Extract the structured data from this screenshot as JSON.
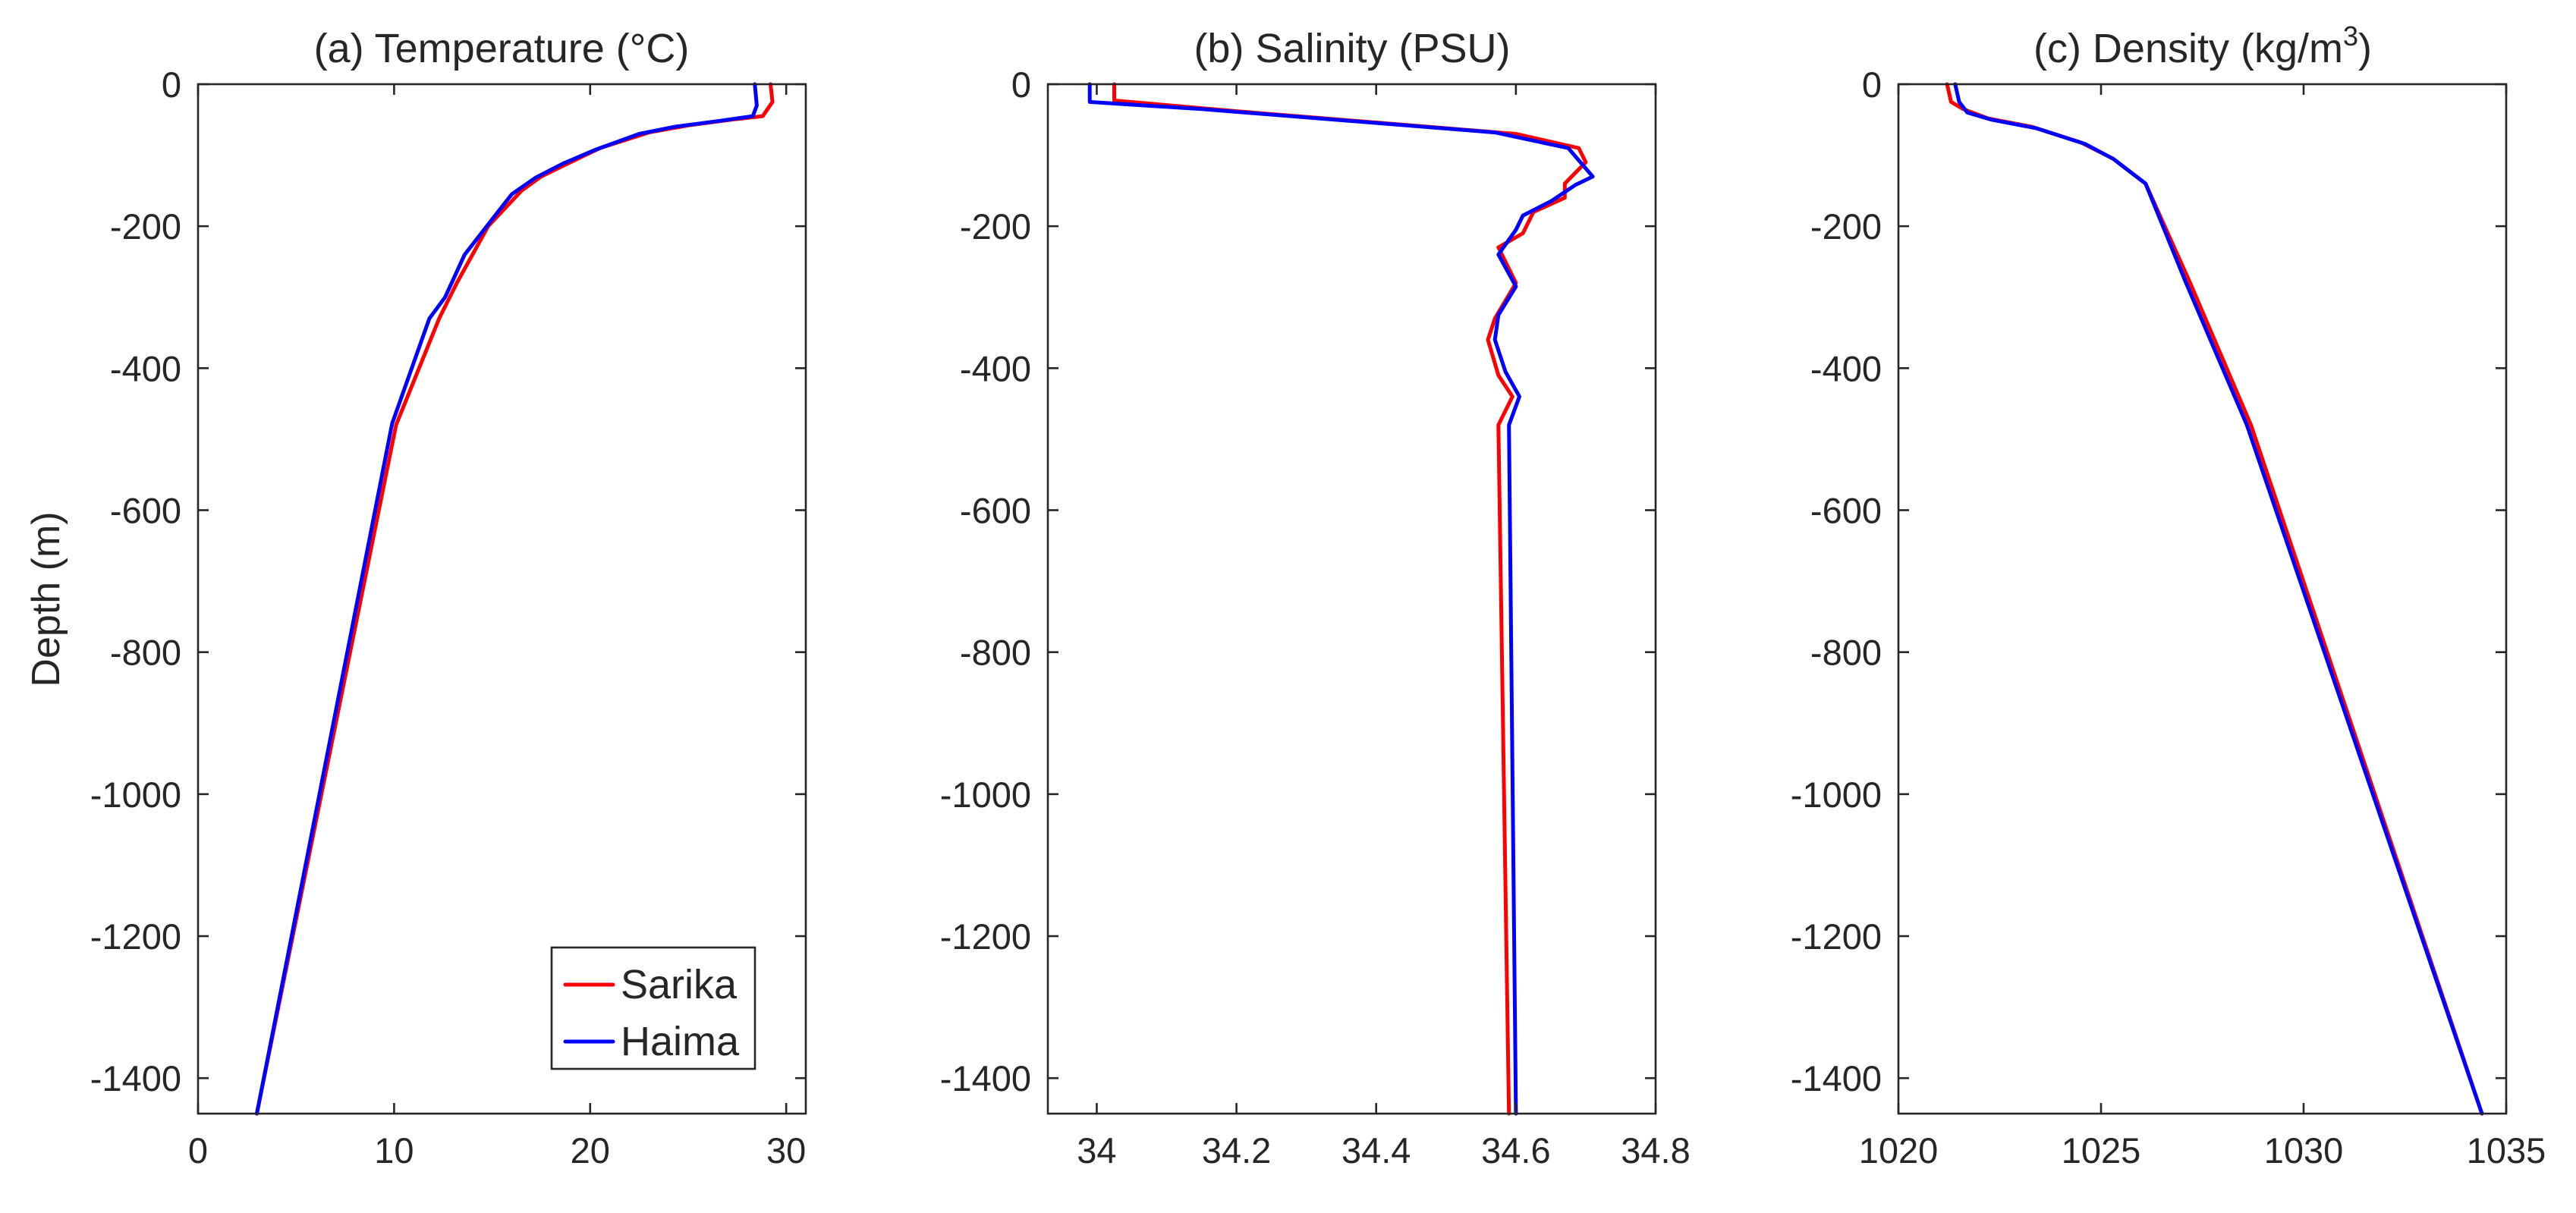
{
  "figure": {
    "ylabel": "Depth (m)"
  },
  "colors": {
    "sarika": "#ff0000",
    "haima": "#0000ff",
    "axis": "#262626",
    "background": "#ffffff"
  },
  "legend": {
    "placement": "bottom-right of panel (a)",
    "entries": [
      {
        "name": "Sarika",
        "color": "#ff0000"
      },
      {
        "name": "Haima",
        "color": "#0000ff"
      }
    ]
  },
  "chart_data": [
    {
      "type": "line",
      "title": "(a) Temperature (°C)",
      "xlabel": "",
      "ylabel": "Depth (m)",
      "xlim": [
        0,
        31
      ],
      "ylim": [
        -1450,
        0
      ],
      "xticks": [
        0,
        10,
        20,
        30
      ],
      "xtick_labels": [
        "0",
        "10",
        "20",
        "30"
      ],
      "yticks": [
        0,
        -200,
        -400,
        -600,
        -800,
        -1000,
        -1200,
        -1400
      ],
      "ytick_labels": [
        "0",
        "-200",
        "-400",
        "-600",
        "-800",
        "-1000",
        "-1200",
        "-1400"
      ],
      "series": [
        {
          "name": "Sarika",
          "color": "#ff0000",
          "x": [
            29.2,
            29.3,
            28.8,
            27.2,
            25,
            23,
            20.5,
            19,
            17.5,
            16.5,
            14.8,
            13.2,
            12.3,
            10.1,
            3
          ],
          "y": [
            0,
            -25,
            -45,
            -50,
            -58,
            -68,
            -90,
            -110,
            -130,
            -150,
            -200,
            -280,
            -330,
            -480,
            -1450
          ]
        },
        {
          "name": "Haima",
          "color": "#0000ff",
          "x": [
            28.4,
            28.5,
            28.3,
            26.5,
            24.3,
            22.5,
            20.3,
            18.6,
            17.2,
            16,
            13.6,
            12.6,
            11.8,
            9.9,
            3
          ],
          "y": [
            0,
            -30,
            -45,
            -52,
            -60,
            -70,
            -92,
            -112,
            -132,
            -155,
            -240,
            -300,
            -330,
            -478,
            -1450
          ]
        }
      ]
    },
    {
      "type": "line",
      "title": "(b) Salinity (PSU)",
      "xlabel": "",
      "ylabel": "",
      "xlim": [
        33.93,
        34.8
      ],
      "ylim": [
        -1450,
        0
      ],
      "xticks": [
        34,
        34.2,
        34.4,
        34.6,
        34.8
      ],
      "xtick_labels": [
        "34",
        "34.2",
        "34.4",
        "34.6",
        "34.8"
      ],
      "yticks": [
        0,
        -200,
        -400,
        -600,
        -800,
        -1000,
        -1200,
        -1400
      ],
      "ytick_labels": [
        "0",
        "-200",
        "-400",
        "-600",
        "-800",
        "-1000",
        "-1200",
        "-1400"
      ],
      "series": [
        {
          "name": "Sarika",
          "color": "#ff0000",
          "x": [
            34.025,
            34.025,
            34.2,
            34.6,
            34.69,
            34.7,
            34.67,
            34.67,
            34.625,
            34.61,
            34.575,
            34.6,
            34.57,
            34.56,
            34.575,
            34.595,
            34.575,
            34.59
          ],
          "y": [
            0,
            -23,
            -38,
            -70,
            -90,
            -110,
            -140,
            -160,
            -180,
            -210,
            -230,
            -280,
            -330,
            -360,
            -410,
            -440,
            -480,
            -1450
          ]
        },
        {
          "name": "Haima",
          "color": "#0000ff",
          "x": [
            33.99,
            33.99,
            34.15,
            34.57,
            34.675,
            34.71,
            34.685,
            34.65,
            34.61,
            34.6,
            34.575,
            34.6,
            34.575,
            34.57,
            34.585,
            34.605,
            34.59,
            34.6
          ],
          "y": [
            0,
            -25,
            -35,
            -68,
            -90,
            -130,
            -142,
            -165,
            -185,
            -205,
            -240,
            -285,
            -325,
            -360,
            -405,
            -440,
            -480,
            -1450
          ]
        }
      ]
    },
    {
      "type": "line",
      "title": "(c) Density (kg/m3)",
      "title_main": "(c) Density (kg/m",
      "title_superscript": "3",
      "title_close": ")",
      "xlabel": "",
      "ylabel": "",
      "xlim": [
        1020,
        1035
      ],
      "ylim": [
        -1450,
        0
      ],
      "xticks": [
        1020,
        1025,
        1030,
        1035
      ],
      "xtick_labels": [
        "1020",
        "1025",
        "1030",
        "1035"
      ],
      "yticks": [
        0,
        -200,
        -400,
        -600,
        -800,
        -1000,
        -1200,
        -1400
      ],
      "ytick_labels": [
        "0",
        "-200",
        "-400",
        "-600",
        "-800",
        "-1000",
        "-1200",
        "-1400"
      ],
      "series": [
        {
          "name": "Sarika",
          "color": "#ff0000",
          "x": [
            1021.2,
            1021.3,
            1021.6,
            1022.2,
            1023.3,
            1024.5,
            1025.3,
            1026.1,
            1027.2,
            1028.7,
            1034.4
          ],
          "y": [
            0,
            -25,
            -35,
            -48,
            -60,
            -82,
            -105,
            -140,
            -280,
            -480,
            -1450
          ]
        },
        {
          "name": "Haima",
          "color": "#0000ff",
          "x": [
            1021.4,
            1021.5,
            1021.7,
            1022.3,
            1023.4,
            1024.6,
            1025.3,
            1026.1,
            1027.1,
            1028.6,
            1034.4
          ],
          "y": [
            0,
            -25,
            -40,
            -50,
            -62,
            -84,
            -105,
            -140,
            -280,
            -480,
            -1450
          ]
        }
      ]
    }
  ]
}
